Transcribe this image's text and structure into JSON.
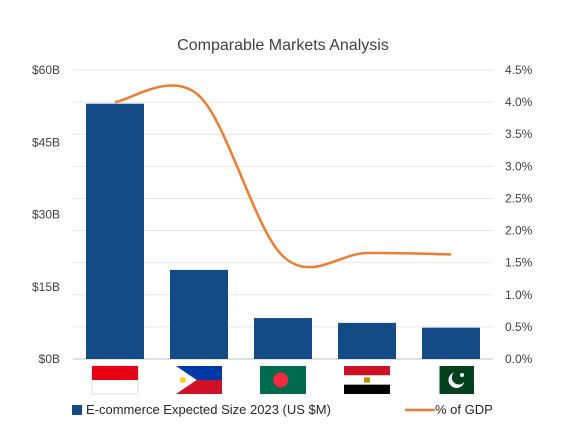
{
  "chart_data": {
    "type": "bar",
    "title": "Comparable Markets Analysis",
    "categories": [
      "Indonesia",
      "Philippines",
      "Bangladesh",
      "Egypt",
      "Pakistan"
    ],
    "series": [
      {
        "name": "E-commerce Expected Size 2023 (US $M)",
        "type": "bar",
        "axis": "left",
        "color": "#124B85",
        "values": [
          53000,
          18500,
          8500,
          7500,
          6500
        ]
      },
      {
        "name": "% of GDP",
        "type": "line",
        "axis": "right",
        "color": "#ED7D31",
        "values": [
          4.0,
          4.1,
          1.6,
          1.65,
          1.63
        ]
      }
    ],
    "y_left": {
      "range": [
        0,
        60000
      ],
      "ticks": [
        0,
        15000,
        30000,
        45000,
        60000
      ],
      "tick_labels": [
        "$0B",
        "$15B",
        "$30B",
        "$45B",
        "$60B"
      ]
    },
    "y_right": {
      "range": [
        0,
        4.5
      ],
      "ticks": [
        0,
        0.5,
        1,
        1.5,
        2,
        2.5,
        3,
        3.5,
        4,
        4.5
      ],
      "tick_labels": [
        "0.0%",
        "0.5%",
        "1.0%",
        "1.5%",
        "2.0%",
        "2.5%",
        "3.0%",
        "3.5%",
        "4.0%",
        "4.5%"
      ]
    },
    "grid": true,
    "legend_position": "bottom",
    "category_icons": [
      "flag-indonesia",
      "flag-philippines",
      "flag-bangladesh",
      "flag-egypt",
      "flag-pakistan"
    ]
  }
}
